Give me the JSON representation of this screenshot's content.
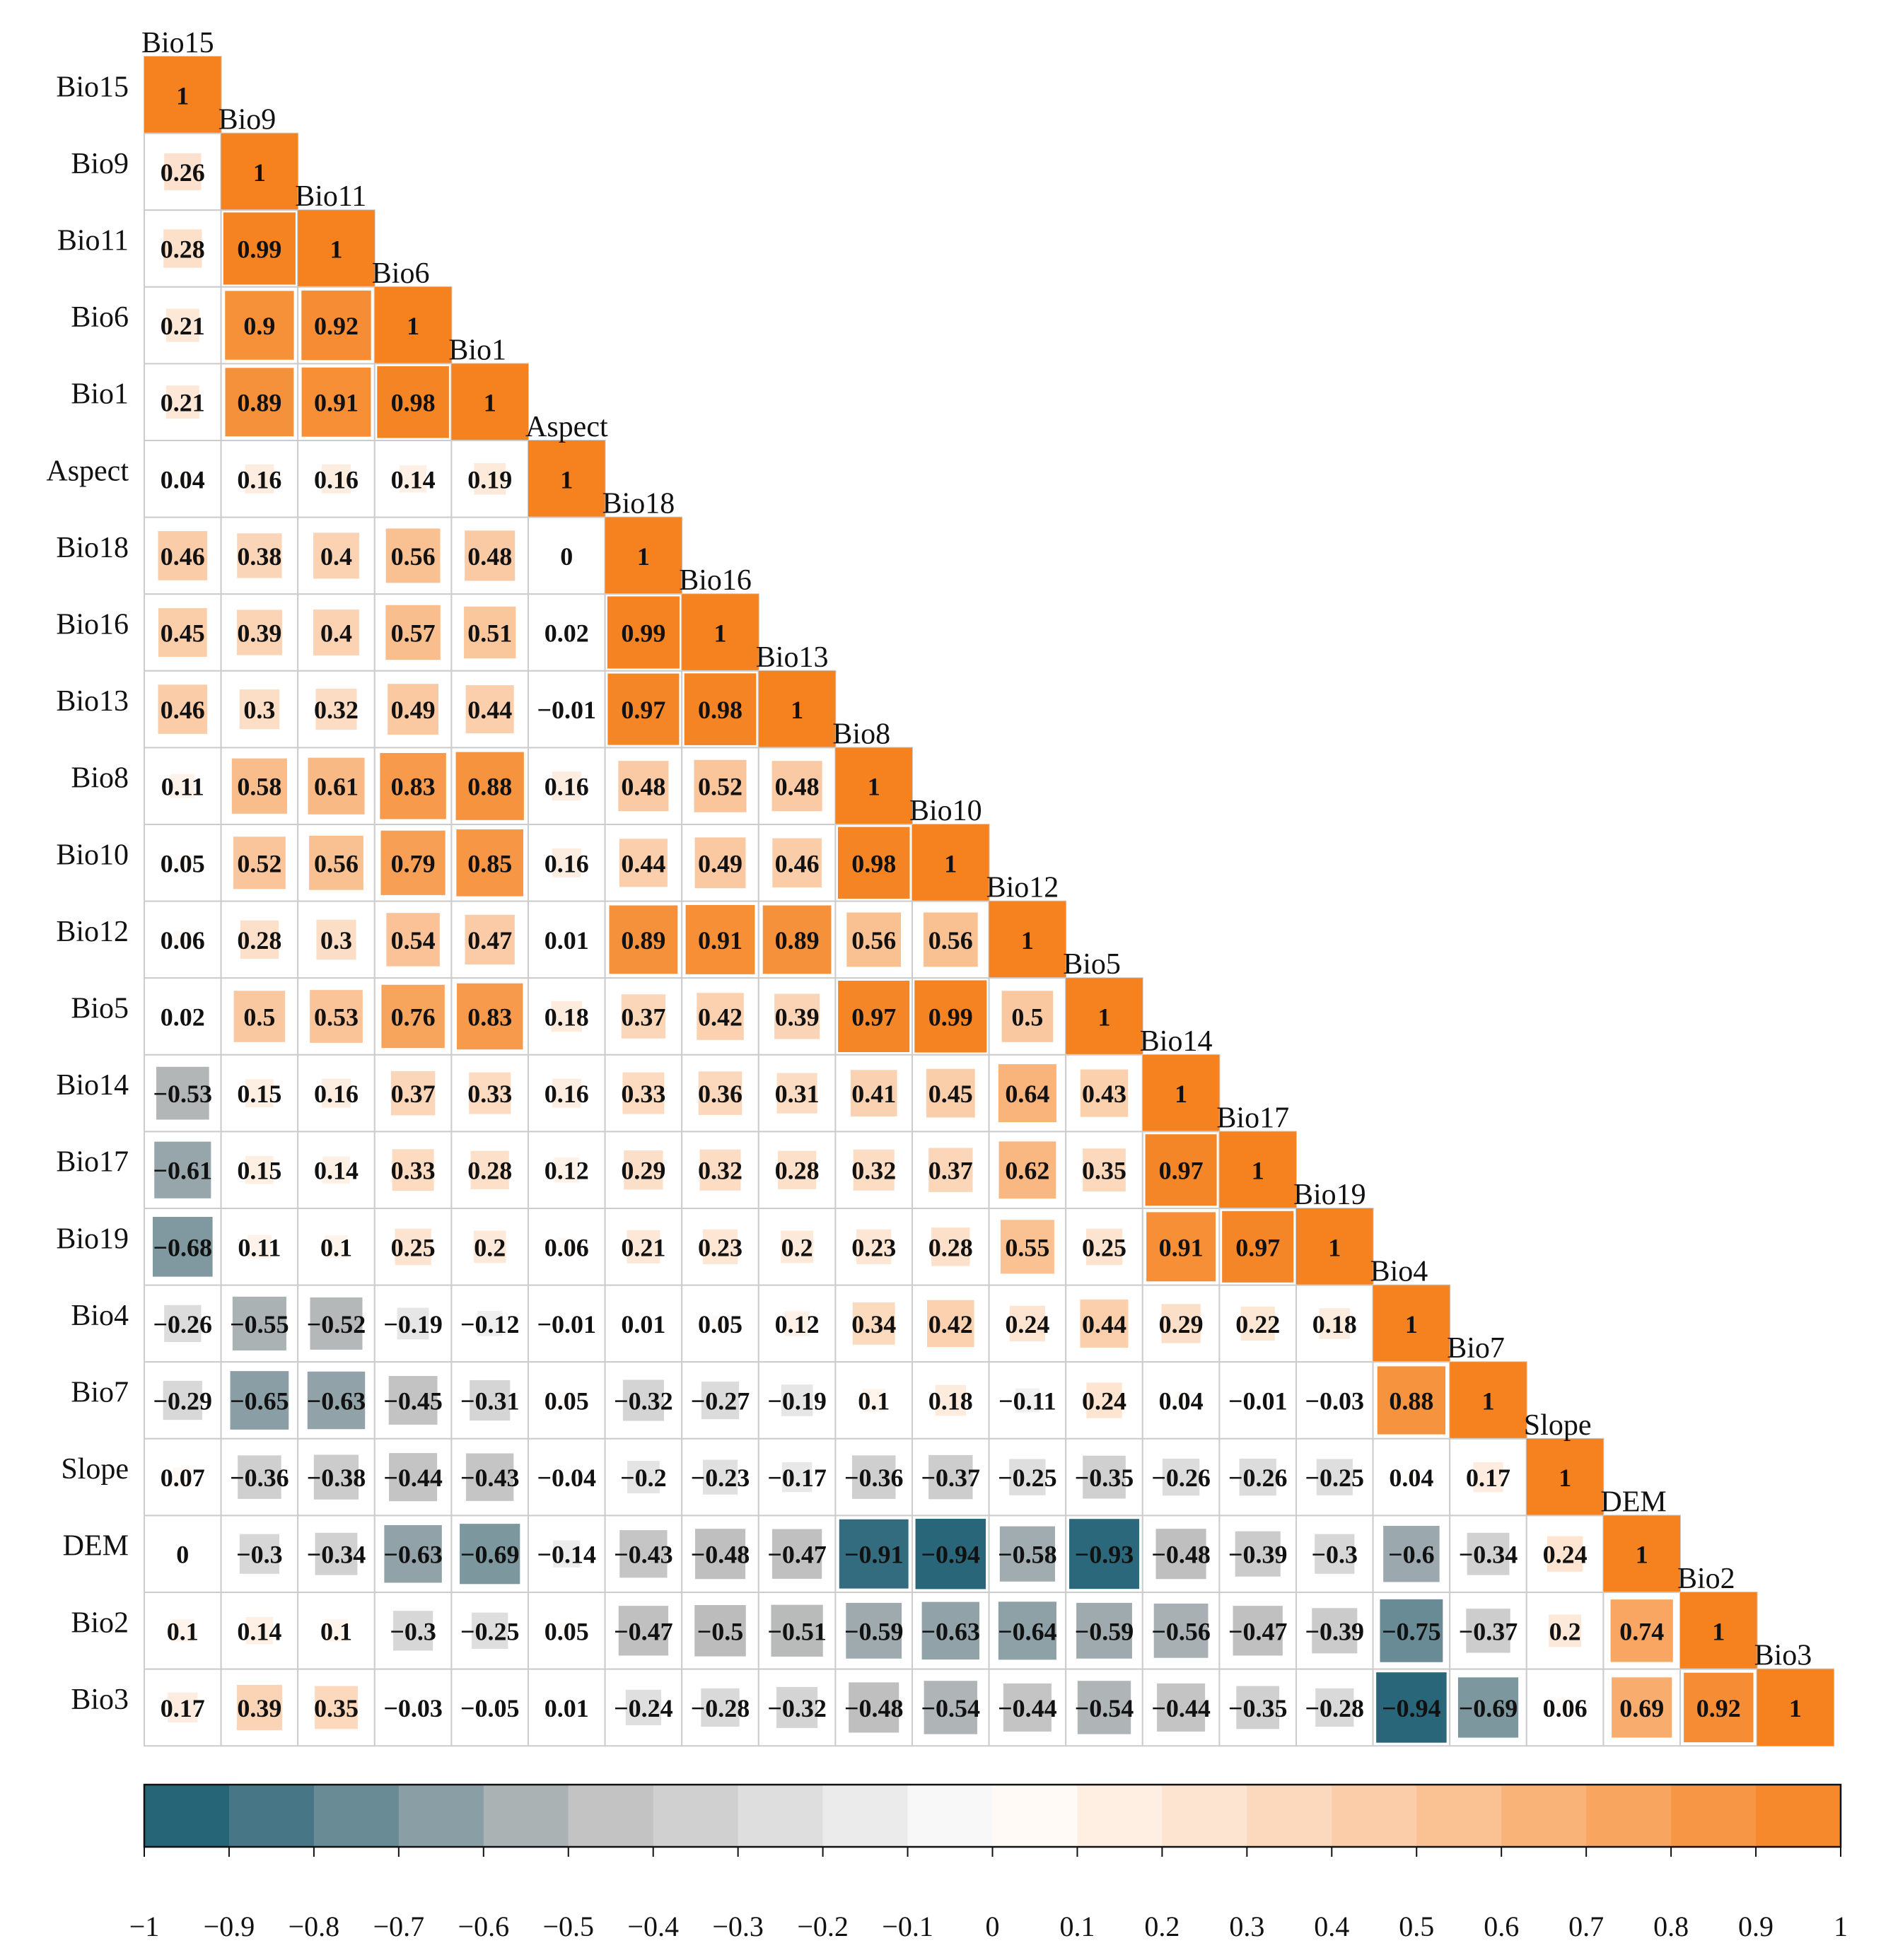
{
  "chart_data": {
    "type": "heatmap",
    "title": "",
    "variables": [
      "Bio15",
      "Bio9",
      "Bio11",
      "Bio6",
      "Bio1",
      "Aspect",
      "Bio18",
      "Bio16",
      "Bio13",
      "Bio8",
      "Bio10",
      "Bio12",
      "Bio5",
      "Bio14",
      "Bio17",
      "Bio19",
      "Bio4",
      "Bio7",
      "Slope",
      "DEM",
      "Bio2",
      "Bio3"
    ],
    "matrix": [
      [
        "1"
      ],
      [
        "0.26",
        "1"
      ],
      [
        "0.28",
        "0.99",
        "1"
      ],
      [
        "0.21",
        "0.9",
        "0.92",
        "1"
      ],
      [
        "0.21",
        "0.89",
        "0.91",
        "0.98",
        "1"
      ],
      [
        "0.04",
        "0.16",
        "0.16",
        "0.14",
        "0.19",
        "1"
      ],
      [
        "0.46",
        "0.38",
        "0.4",
        "0.56",
        "0.48",
        "0",
        "1"
      ],
      [
        "0.45",
        "0.39",
        "0.4",
        "0.57",
        "0.51",
        "0.02",
        "0.99",
        "1"
      ],
      [
        "0.46",
        "0.3",
        "0.32",
        "0.49",
        "0.44",
        "-0.01",
        "0.97",
        "0.98",
        "1"
      ],
      [
        "0.11",
        "0.58",
        "0.61",
        "0.83",
        "0.88",
        "0.16",
        "0.48",
        "0.52",
        "0.48",
        "1"
      ],
      [
        "0.05",
        "0.52",
        "0.56",
        "0.79",
        "0.85",
        "0.16",
        "0.44",
        "0.49",
        "0.46",
        "0.98",
        "1"
      ],
      [
        "0.06",
        "0.28",
        "0.3",
        "0.54",
        "0.47",
        "0.01",
        "0.89",
        "0.91",
        "0.89",
        "0.56",
        "0.56",
        "1"
      ],
      [
        "0.02",
        "0.5",
        "0.53",
        "0.76",
        "0.83",
        "0.18",
        "0.37",
        "0.42",
        "0.39",
        "0.97",
        "0.99",
        "0.5",
        "1"
      ],
      [
        "-0.53",
        "0.15",
        "0.16",
        "0.37",
        "0.33",
        "0.16",
        "0.33",
        "0.36",
        "0.31",
        "0.41",
        "0.45",
        "0.64",
        "0.43",
        "1"
      ],
      [
        "-0.61",
        "0.15",
        "0.14",
        "0.33",
        "0.28",
        "0.12",
        "0.29",
        "0.32",
        "0.28",
        "0.32",
        "0.37",
        "0.62",
        "0.35",
        "0.97",
        "1"
      ],
      [
        "-0.68",
        "0.11",
        "0.1",
        "0.25",
        "0.2",
        "0.06",
        "0.21",
        "0.23",
        "0.2",
        "0.23",
        "0.28",
        "0.55",
        "0.25",
        "0.91",
        "0.97",
        "1"
      ],
      [
        "-0.26",
        "-0.55",
        "-0.52",
        "-0.19",
        "-0.12",
        "-0.01",
        "0.01",
        "0.05",
        "0.12",
        "0.34",
        "0.42",
        "0.24",
        "0.44",
        "0.29",
        "0.22",
        "0.18",
        "1"
      ],
      [
        "-0.29",
        "-0.65",
        "-0.63",
        "-0.45",
        "-0.31",
        "0.05",
        "-0.32",
        "-0.27",
        "-0.19",
        "0.1",
        "0.18",
        "-0.11",
        "0.24",
        "0.04",
        "-0.01",
        "-0.03",
        "0.88",
        "1"
      ],
      [
        "0.07",
        "-0.36",
        "-0.38",
        "-0.44",
        "-0.43",
        "-0.04",
        "-0.2",
        "-0.23",
        "-0.17",
        "-0.36",
        "-0.37",
        "-0.25",
        "-0.35",
        "-0.26",
        "-0.26",
        "-0.25",
        "0.04",
        "0.17",
        "1"
      ],
      [
        "0",
        "-0.3",
        "-0.34",
        "-0.63",
        "-0.69",
        "-0.14",
        "-0.43",
        "-0.48",
        "-0.47",
        "-0.91",
        "-0.94",
        "-0.58",
        "-0.93",
        "-0.48",
        "-0.39",
        "-0.3",
        "-0.6",
        "-0.34",
        "0.24",
        "1"
      ],
      [
        "0.1",
        "0.14",
        "0.1",
        "-0.3",
        "-0.25",
        "0.05",
        "-0.47",
        "-0.5",
        "-0.51",
        "-0.59",
        "-0.63",
        "-0.64",
        "-0.59",
        "-0.56",
        "-0.47",
        "-0.39",
        "-0.75",
        "-0.37",
        "0.2",
        "0.74",
        "1"
      ],
      [
        "0.17",
        "0.39",
        "0.35",
        "-0.03",
        "-0.05",
        "0.01",
        "-0.24",
        "-0.28",
        "-0.32",
        "-0.48",
        "-0.54",
        "-0.44",
        "-0.54",
        "-0.44",
        "-0.35",
        "-0.28",
        "-0.94",
        "-0.69",
        "0.06",
        "0.69",
        "0.92",
        "1"
      ]
    ],
    "colorbar": {
      "range": [
        -1,
        1
      ],
      "ticks": [
        "−1",
        "−0.9",
        "−0.8",
        "−0.7",
        "−0.6",
        "−0.5",
        "−0.4",
        "−0.3",
        "−0.2",
        "−0.1",
        "0",
        "0.1",
        "0.2",
        "0.3",
        "0.4",
        "0.5",
        "0.6",
        "0.7",
        "0.8",
        "0.9",
        "1"
      ]
    },
    "colors": {
      "negative_end": "#155a70",
      "neutral": "#ffffff",
      "positive_end": "#f5821f",
      "grid": "#cccccc"
    },
    "xlabel": "",
    "ylabel": ""
  }
}
